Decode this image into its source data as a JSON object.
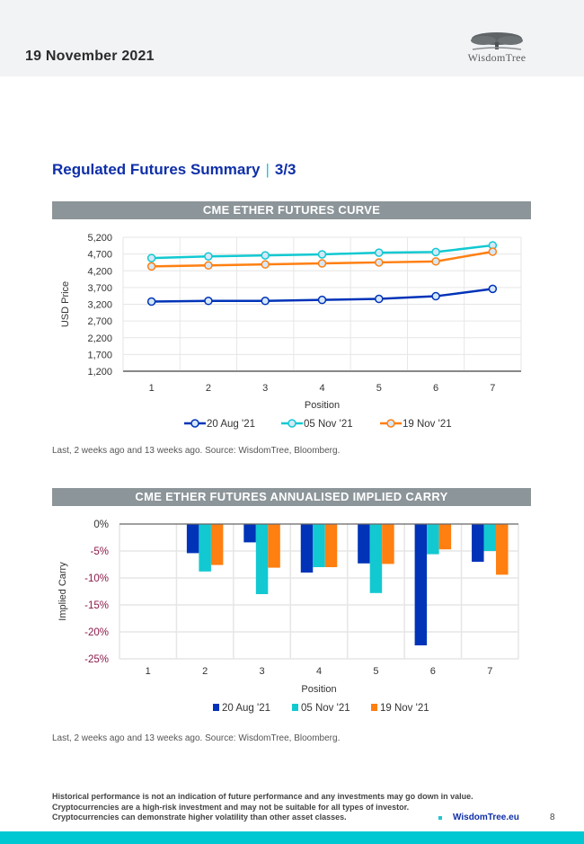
{
  "header": {
    "date": "19 November 2021",
    "logo_text": "WisdomTree",
    "logo_icon": "tree-icon"
  },
  "page_title": {
    "main": "Regulated Futures Summary",
    "separator": "|",
    "page": "3/3"
  },
  "colors": {
    "series1": "#0033b8",
    "series2": "#12c9d1",
    "series3": "#ff7f11",
    "title": "#0f2fa8",
    "banner": "#8c9599",
    "negative_tick": "#8b1a4a",
    "footer": "#00c8d2"
  },
  "chart_data": [
    {
      "type": "line",
      "title": "CME ETHER FUTURES CURVE",
      "xlabel": "Position",
      "ylabel": "USD Price",
      "categories": [
        "1",
        "2",
        "3",
        "4",
        "5",
        "6",
        "7"
      ],
      "yticks": [
        "1,200",
        "1,700",
        "2,200",
        "2,700",
        "3,200",
        "3,700",
        "4,200",
        "4,700",
        "5,200"
      ],
      "ylim": [
        1200,
        5200
      ],
      "grid": true,
      "legend": "bottom",
      "series": [
        {
          "name": "20 Aug '21",
          "values": [
            3280,
            3300,
            3300,
            3330,
            3360,
            3440,
            3660
          ]
        },
        {
          "name": "05 Nov '21",
          "values": [
            4580,
            4630,
            4660,
            4690,
            4740,
            4760,
            4960
          ]
        },
        {
          "name": "19 Nov '21",
          "values": [
            4330,
            4360,
            4390,
            4420,
            4450,
            4480,
            4770
          ]
        }
      ]
    },
    {
      "type": "bar",
      "title": "CME ETHER FUTURES ANNUALISED IMPLIED CARRY",
      "xlabel": "Position",
      "ylabel": "Implied Carry",
      "categories": [
        "1",
        "2",
        "3",
        "4",
        "5",
        "6",
        "7"
      ],
      "yticks": [
        "0%",
        "-5%",
        "-10%",
        "-15%",
        "-20%",
        "-25%"
      ],
      "ylim": [
        -25,
        0
      ],
      "grid": true,
      "legend": "bottom",
      "series": [
        {
          "name": "20 Aug '21",
          "values": [
            null,
            -5.4,
            -3.4,
            -9.0,
            -7.3,
            -22.5,
            -7.0
          ]
        },
        {
          "name": "05 Nov '21",
          "values": [
            null,
            -8.8,
            -13.0,
            -8.0,
            -12.8,
            -5.6,
            -5.0
          ]
        },
        {
          "name": "19 Nov '21",
          "values": [
            null,
            -7.6,
            -8.1,
            -8.0,
            -7.4,
            -4.7,
            -9.4
          ]
        }
      ]
    }
  ],
  "source1": "Last, 2 weeks ago and 13 weeks ago. Source: WisdomTree, Bloomberg.",
  "source2": "Last, 2 weeks ago and 13 weeks ago. Source: WisdomTree, Bloomberg.",
  "footer": {
    "disclaimer": [
      "Historical performance is not an indication of future performance and any investments may go down in value.",
      "Cryptocurrencies are a high-risk investment and may not be suitable for all types of investor.",
      "Cryptocurrencies can demonstrate higher volatility than other asset classes."
    ],
    "site": "WisdomTree.eu",
    "page_number": "8"
  }
}
